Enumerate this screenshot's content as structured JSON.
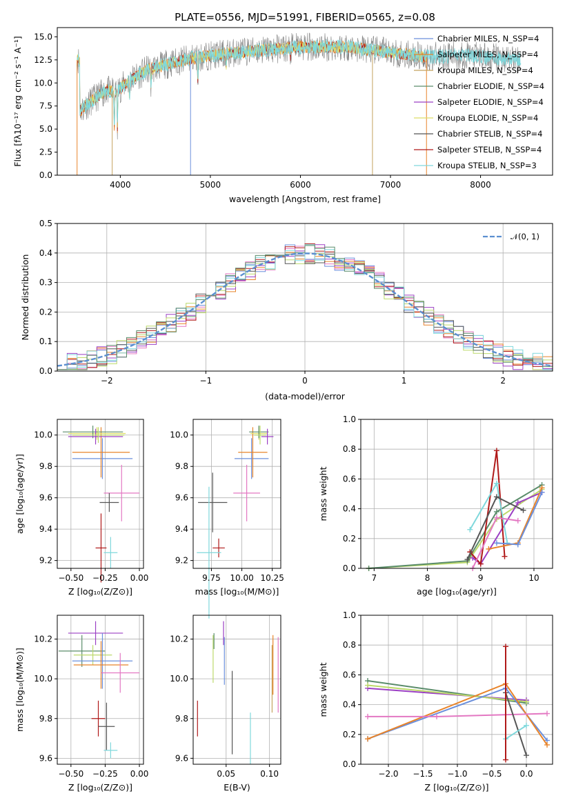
{
  "colors": {
    "chabrier_miles": "#6a8fdc",
    "salpeter_miles": "#e8842a",
    "kroupa_miles": "#c4a25e",
    "chabrier_elodie": "#5a8c6a",
    "salpeter_elodie": "#9b3fc4",
    "kroupa_elodie": "#dddd66",
    "chabrier_stelib": "#555555",
    "salpeter_stelib": "#b01818",
    "kroupa_stelib": "#7fd8dc",
    "pink": "#e377c2",
    "lime": "#bcd96a",
    "gauss": "#5b8fd0"
  },
  "chart_data": [
    {
      "id": "spectrum",
      "type": "line",
      "title": "PLATE=0556, MJD=51991, FIBERID=0565, z=0.08",
      "xlabel": "wavelength [Angstrom, rest frame]",
      "ylabel": "Flux [fλ10⁻¹⁷ erg cm⁻² s⁻¹ A⁻¹]",
      "xlim": [
        3300,
        8800
      ],
      "ylim": [
        0,
        16
      ],
      "xticks": [
        "4000",
        "5000",
        "6000",
        "7000",
        "8000"
      ],
      "yticks": [
        "0.0",
        "2.5",
        "5.0",
        "7.5",
        "10.0",
        "12.5",
        "15.0"
      ],
      "legend_position": "top-right",
      "legend": [
        "Chabrier MILES, N_SSP=4",
        "Salpeter MILES, N_SSP=4",
        "Kroupa MILES, N_SSP=4",
        "Chabrier ELODIE, N_SSP=4",
        "Salpeter ELODIE, N_SSP=4",
        "Kroupa ELODIE, N_SSP=4",
        "Chabrier STELIB, N_SSP=4",
        "Salpeter STELIB, N_SSP=4",
        "Kroupa STELIB, N_SSP=3"
      ],
      "continuum": [
        [
          3550,
          7.0
        ],
        [
          3700,
          8.2
        ],
        [
          3850,
          9.2
        ],
        [
          3950,
          9.0
        ],
        [
          4100,
          10.3
        ],
        [
          4300,
          11.4
        ],
        [
          4500,
          12.0
        ],
        [
          4800,
          12.7
        ],
        [
          5200,
          13.2
        ],
        [
          5600,
          13.6
        ],
        [
          6000,
          13.9
        ],
        [
          6500,
          13.9
        ],
        [
          7000,
          13.3
        ],
        [
          7400,
          12.8
        ],
        [
          7800,
          13.0
        ],
        [
          8200,
          12.7
        ],
        [
          8450,
          12.5
        ]
      ],
      "series_ranges": [
        {
          "name": "data",
          "x": [
            3520,
            8450
          ]
        },
        {
          "name": "Chabrier MILES",
          "x": [
            3520,
            7400
          ]
        },
        {
          "name": "Salpeter MILES",
          "x": [
            3520,
            7400
          ]
        },
        {
          "name": "Kroupa STELIB",
          "x": [
            3520,
            8450
          ]
        }
      ],
      "grid": false
    },
    {
      "id": "residuals",
      "type": "histogram",
      "xlabel": "(data-model)/error",
      "ylabel": "Normed distribution",
      "xlim": [
        -2.5,
        2.5
      ],
      "ylim": [
        0,
        0.5
      ],
      "xticks": [
        "−2",
        "−1",
        "0",
        "1",
        "2"
      ],
      "yticks": [
        "0.0",
        "0.1",
        "0.2",
        "0.3",
        "0.4",
        "0.5"
      ],
      "bin_width": 0.1,
      "legend": [
        "𝒩(0, 1)"
      ],
      "legend_position": "top-right",
      "gauss": {
        "mean": 0,
        "sigma": 1
      },
      "grid": true
    },
    {
      "id": "age-vs-z",
      "type": "errorbar",
      "xlabel": "Z [log₁₀(Z/Z⊙)]",
      "ylabel": "age  [log₁₀(age/yr)]",
      "xlim": [
        -0.6,
        0.03
      ],
      "ylim": [
        9.15,
        10.1
      ],
      "xticks": [
        "−0.50",
        "−0.25",
        "0.00"
      ],
      "yticks": [
        "9.2",
        "9.4",
        "9.6",
        "9.8",
        "10.0"
      ],
      "points": [
        {
          "c": "chabrier_miles",
          "x": -0.27,
          "xerr": 0.22,
          "y": 9.85,
          "yerr": 0.13
        },
        {
          "c": "salpeter_miles",
          "x": -0.28,
          "xerr": 0.21,
          "y": 9.89,
          "yerr": 0.16
        },
        {
          "c": "kroupa_elodie",
          "x": -0.31,
          "xerr": 0.21,
          "y": 10.01,
          "yerr": 0.04
        },
        {
          "c": "chabrier_elodie",
          "x": -0.34,
          "xerr": 0.22,
          "y": 10.02,
          "yerr": 0.04
        },
        {
          "c": "salpeter_elodie",
          "x": -0.32,
          "xerr": 0.2,
          "y": 9.99,
          "yerr": 0.05
        },
        {
          "c": "lime",
          "x": -0.3,
          "xerr": 0.19,
          "y": 10.0,
          "yerr": 0.05
        },
        {
          "c": "pink",
          "x": -0.13,
          "xerr": 0.13,
          "y": 9.63,
          "yerr": 0.18
        },
        {
          "c": "chabrier_stelib",
          "x": -0.22,
          "xerr": 0.07,
          "y": 9.57,
          "yerr": 0.06
        },
        {
          "c": "salpeter_stelib",
          "x": -0.28,
          "xerr": 0.04,
          "y": 9.28,
          "yerr": 0.22
        },
        {
          "c": "kroupa_stelib",
          "x": -0.21,
          "xerr": 0.05,
          "y": 9.25,
          "yerr": 0.1
        }
      ]
    },
    {
      "id": "age-vs-mass",
      "type": "errorbar",
      "xlabel": "mass [log₁₀(M/M⊙)]",
      "ylabel": "",
      "xlim": [
        9.6,
        10.32
      ],
      "ylim": [
        9.15,
        10.1
      ],
      "xticks": [
        "9.75",
        "10.00",
        "10.25"
      ],
      "yticks": [
        "9.2",
        "9.4",
        "9.6",
        "9.8",
        "10.0"
      ],
      "points": [
        {
          "c": "chabrier_miles",
          "x": 10.08,
          "xerr": 0.14,
          "y": 9.85,
          "yerr": 0.13
        },
        {
          "c": "salpeter_miles",
          "x": 10.09,
          "xerr": 0.12,
          "y": 9.89,
          "yerr": 0.16
        },
        {
          "c": "kroupa_elodie",
          "x": 10.14,
          "xerr": 0.07,
          "y": 10.01,
          "yerr": 0.04
        },
        {
          "c": "chabrier_elodie",
          "x": 10.14,
          "xerr": 0.08,
          "y": 10.02,
          "yerr": 0.04
        },
        {
          "c": "salpeter_elodie",
          "x": 10.21,
          "xerr": 0.05,
          "y": 9.99,
          "yerr": 0.05
        },
        {
          "c": "lime",
          "x": 10.15,
          "xerr": 0.05,
          "y": 10.0,
          "yerr": 0.06
        },
        {
          "c": "pink",
          "x": 10.04,
          "xerr": 0.11,
          "y": 9.63,
          "yerr": 0.18
        },
        {
          "c": "chabrier_stelib",
          "x": 9.76,
          "xerr": 0.12,
          "y": 9.57,
          "yerr": 0.19
        },
        {
          "c": "salpeter_stelib",
          "x": 9.81,
          "xerr": 0.05,
          "y": 9.28,
          "yerr": 0.06
        },
        {
          "c": "kroupa_stelib",
          "x": 9.73,
          "xerr": 0.1,
          "y": 9.25,
          "yerr": 0.42
        }
      ]
    },
    {
      "id": "weight-vs-age",
      "type": "line",
      "xlabel": "age  [log₁₀(age/yr)]",
      "ylabel": "mass weight",
      "xlim": [
        6.75,
        10.35
      ],
      "ylim": [
        0,
        1
      ],
      "xticks": [
        "7",
        "8",
        "9",
        "10"
      ],
      "yticks": [
        "0.0",
        "0.2",
        "0.4",
        "0.6",
        "0.8",
        "1.0"
      ],
      "series": [
        {
          "c": "lime",
          "x": [
            6.9,
            8.75,
            9.3,
            10.15
          ],
          "y": [
            0.0,
            0.04,
            0.33,
            0.53
          ]
        },
        {
          "c": "chabrier_elodie",
          "x": [
            6.9,
            8.75,
            9.3,
            10.15
          ],
          "y": [
            0.0,
            0.05,
            0.38,
            0.56
          ]
        },
        {
          "c": "salpeter_elodie",
          "x": [
            8.85,
            9.0,
            9.7,
            10.15
          ],
          "y": [
            0.07,
            0.03,
            0.44,
            0.51
          ]
        },
        {
          "c": "salpeter_stelib",
          "x": [
            8.8,
            9.0,
            9.3,
            9.45
          ],
          "y": [
            0.11,
            0.03,
            0.79,
            0.08
          ]
        },
        {
          "c": "kroupa_stelib",
          "x": [
            8.8,
            9.3,
            9.5
          ],
          "y": [
            0.26,
            0.57,
            0.17
          ]
        },
        {
          "c": "chabrier_stelib",
          "x": [
            8.75,
            9.3,
            9.8
          ],
          "y": [
            0.06,
            0.48,
            0.39
          ]
        },
        {
          "c": "pink",
          "x": [
            8.85,
            9.3,
            9.7
          ],
          "y": [
            0.0,
            0.34,
            0.32
          ]
        },
        {
          "c": "salpeter_miles",
          "x": [
            9.15,
            9.7,
            10.15
          ],
          "y": [
            0.13,
            0.17,
            0.54
          ]
        },
        {
          "c": "chabrier_miles",
          "x": [
            9.3,
            9.7,
            10.15
          ],
          "y": [
            0.17,
            0.16,
            0.51
          ]
        }
      ],
      "grid": true
    },
    {
      "id": "mass-vs-z",
      "type": "errorbar",
      "xlabel": "Z [log₁₀(Z/Z⊙)]",
      "ylabel": "mass [log₁₀(M/M⊙)]",
      "xlim": [
        -0.6,
        0.03
      ],
      "ylim": [
        9.57,
        10.32
      ],
      "xticks": [
        "−0.50",
        "−0.25",
        "0.00"
      ],
      "yticks": [
        "9.6",
        "9.8",
        "10.0",
        "10.2"
      ],
      "points": [
        {
          "c": "salpeter_elodie",
          "x": -0.32,
          "xerr": 0.2,
          "y": 10.23,
          "yerr": 0.06
        },
        {
          "c": "chabrier_elodie",
          "x": -0.42,
          "xerr": 0.17,
          "y": 10.14,
          "yerr": 0.08
        },
        {
          "c": "lime",
          "x": -0.34,
          "xerr": 0.14,
          "y": 10.12,
          "yerr": 0.05
        },
        {
          "c": "chabrier_miles",
          "x": -0.27,
          "xerr": 0.22,
          "y": 10.09,
          "yerr": 0.14
        },
        {
          "c": "salpeter_miles",
          "x": -0.28,
          "xerr": 0.2,
          "y": 10.07,
          "yerr": 0.12
        },
        {
          "c": "pink",
          "x": -0.14,
          "xerr": 0.14,
          "y": 10.03,
          "yerr": 0.1
        },
        {
          "c": "salpeter_stelib",
          "x": -0.3,
          "xerr": 0.05,
          "y": 9.8,
          "yerr": 0.09
        },
        {
          "c": "chabrier_stelib",
          "x": -0.24,
          "xerr": 0.06,
          "y": 9.76,
          "yerr": 0.12
        },
        {
          "c": "kroupa_stelib",
          "x": -0.21,
          "xerr": 0.05,
          "y": 9.64,
          "yerr": 0.04
        }
      ]
    },
    {
      "id": "mass-vs-ebv",
      "type": "errorbar",
      "xlabel": "E(B-V)",
      "ylabel": "",
      "xlim": [
        0.012,
        0.113
      ],
      "ylim": [
        9.57,
        10.32
      ],
      "xticks": [
        "0.05",
        "0.10"
      ],
      "yticks": [
        "9.6",
        "9.8",
        "10.0",
        "10.2"
      ],
      "points": [
        {
          "c": "salpeter_elodie",
          "x": 0.047,
          "xerr": 0,
          "y": 10.23,
          "yerr": 0.06
        },
        {
          "c": "chabrier_elodie",
          "x": 0.036,
          "xerr": 0,
          "y": 10.19,
          "yerr": 0.04
        },
        {
          "c": "lime",
          "x": 0.035,
          "xerr": 0,
          "y": 10.1,
          "yerr": 0.12
        },
        {
          "c": "chabrier_miles",
          "x": 0.048,
          "xerr": 0,
          "y": 10.09,
          "yerr": 0.12
        },
        {
          "c": "salpeter_miles",
          "x": 0.104,
          "xerr": 0,
          "y": 10.07,
          "yerr": 0.15
        },
        {
          "c": "chabrier_stelib",
          "x": 0.057,
          "xerr": 0,
          "y": 9.83,
          "yerr": 0.21
        },
        {
          "c": "pink",
          "x": 0.11,
          "xerr": 0,
          "y": 10.02,
          "yerr": 0.19
        },
        {
          "c": "kroupa_miles",
          "x": 0.103,
          "xerr": 0,
          "y": 10.0,
          "yerr": 0.17
        },
        {
          "c": "salpeter_stelib",
          "x": 0.017,
          "xerr": 0,
          "y": 9.8,
          "yerr": 0.09
        },
        {
          "c": "kroupa_stelib",
          "x": 0.078,
          "xerr": 0,
          "y": 9.7,
          "yerr": 0.13
        }
      ]
    },
    {
      "id": "weight-vs-z",
      "type": "line",
      "xlabel": "Z [log₁₀(Z/Z⊙)]",
      "ylabel": "mass weight",
      "xlim": [
        -2.4,
        0.38
      ],
      "ylim": [
        0,
        1
      ],
      "xticks": [
        "−2.0",
        "−1.5",
        "−1.0",
        "−0.5",
        "0.0"
      ],
      "yticks": [
        "0.0",
        "0.2",
        "0.4",
        "0.6",
        "0.8",
        "1.0"
      ],
      "series": [
        {
          "c": "chabrier_elodie",
          "x": [
            -2.3,
            0.0
          ],
          "y": [
            0.56,
            0.41
          ]
        },
        {
          "c": "salpeter_elodie",
          "x": [
            -2.3,
            0.0
          ],
          "y": [
            0.51,
            0.43
          ]
        },
        {
          "c": "lime",
          "x": [
            -2.3,
            0.0
          ],
          "y": [
            0.53,
            0.42
          ]
        },
        {
          "c": "chabrier_miles",
          "x": [
            -2.3,
            -0.3,
            0.3
          ],
          "y": [
            0.17,
            0.51,
            0.16
          ]
        },
        {
          "c": "salpeter_miles",
          "x": [
            -2.3,
            -0.3,
            0.3
          ],
          "y": [
            0.17,
            0.54,
            0.13
          ]
        },
        {
          "c": "pink",
          "x": [
            -2.3,
            -1.3,
            0.3
          ],
          "y": [
            0.32,
            0.32,
            0.34
          ]
        },
        {
          "c": "chabrier_stelib",
          "x": [
            -0.3,
            0.0
          ],
          "y": [
            0.48,
            0.06
          ]
        },
        {
          "c": "kroupa_stelib",
          "x": [
            -0.3,
            0.0
          ],
          "y": [
            0.17,
            0.26
          ]
        },
        {
          "c": "salpeter_stelib",
          "x": [
            -0.3,
            -0.3
          ],
          "y": [
            0.03,
            0.79
          ]
        }
      ],
      "grid": true
    }
  ]
}
